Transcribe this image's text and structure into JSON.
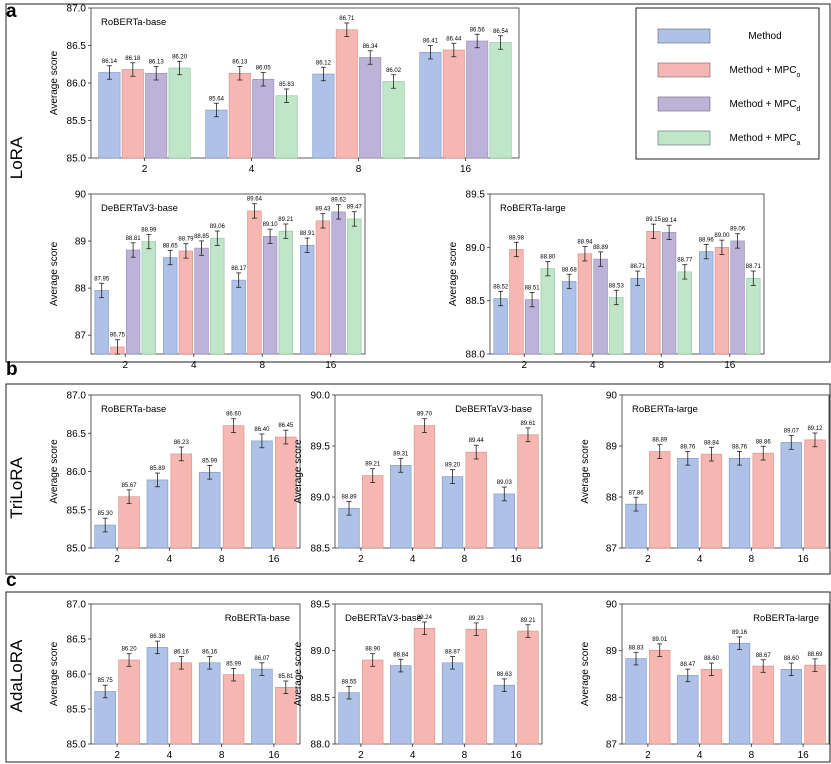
{
  "page": {
    "panel_labels": [
      "a",
      "b",
      "c"
    ],
    "side_labels": [
      "LoRA",
      "TriLoRA",
      "AdaLoRA"
    ]
  },
  "legend": {
    "items": [
      {
        "label": "Method",
        "sub": "",
        "color": "#aec2e8"
      },
      {
        "label": "Method + MPC",
        "sub": "o",
        "color": "#f6b6b1"
      },
      {
        "label": "Method + MPC",
        "sub": "d",
        "color": "#bdb3d8"
      },
      {
        "label": "Method + MPC",
        "sub": "a",
        "color": "#bfe6c9"
      }
    ]
  },
  "chart_data": [
    {
      "id": "lora-roberta-base",
      "type": "bar",
      "title": "RoBERTa-base",
      "title_position": "top-left",
      "ylabel": "Average score",
      "categories": [
        "2",
        "4",
        "8",
        "16"
      ],
      "ylim": [
        85.0,
        87.0
      ],
      "yticks": [
        85.0,
        85.5,
        86.0,
        86.5,
        87.0
      ],
      "tick_decimals": 1,
      "grid": false,
      "series": [
        {
          "values": [
            86.14,
            85.64,
            86.12,
            86.41
          ]
        },
        {
          "values": [
            86.18,
            86.13,
            86.71,
            86.44
          ]
        },
        {
          "values": [
            86.13,
            86.05,
            86.34,
            86.56
          ]
        },
        {
          "values": [
            86.2,
            85.83,
            86.02,
            86.54
          ]
        }
      ],
      "labels": [
        [
          "86.14",
          "85.64",
          "86.12",
          "86.41"
        ],
        [
          "86.18",
          "86.13",
          "86.71",
          "86.44"
        ],
        [
          "86.13",
          "86.05",
          "86.34",
          "86.56"
        ],
        [
          "86.20",
          "85.83",
          "86.02",
          "86.54"
        ]
      ]
    },
    {
      "id": "lora-debertav3-base",
      "type": "bar",
      "title": "DeBERTaV3-base",
      "title_position": "top-left",
      "ylabel": "Average score",
      "categories": [
        "2",
        "4",
        "8",
        "16"
      ],
      "ylim": [
        86.6,
        90.0
      ],
      "yticks": [
        87,
        88,
        89,
        90
      ],
      "tick_decimals": 0,
      "grid": false,
      "series": [
        {
          "values": [
            87.95,
            88.65,
            88.17,
            88.91
          ]
        },
        {
          "values": [
            86.75,
            88.79,
            89.64,
            89.43
          ]
        },
        {
          "values": [
            88.81,
            88.85,
            89.1,
            89.62
          ]
        },
        {
          "values": [
            88.99,
            89.06,
            89.21,
            89.47
          ]
        }
      ],
      "labels": [
        [
          "87.95",
          "88.65",
          "88.17",
          "88.91"
        ],
        [
          "86.75",
          "88.79",
          "89.64",
          "89.43"
        ],
        [
          "88.81",
          "88.85",
          "89.10",
          "89.62"
        ],
        [
          "88.99",
          "89.06",
          "89.21",
          "89.47"
        ]
      ]
    },
    {
      "id": "lora-roberta-large",
      "type": "bar",
      "title": "RoBERTa-large",
      "title_position": "top-left",
      "ylabel": "Average score",
      "categories": [
        "2",
        "4",
        "8",
        "16"
      ],
      "ylim": [
        88.0,
        89.5
      ],
      "yticks": [
        88.0,
        88.5,
        89.0,
        89.5
      ],
      "tick_decimals": 1,
      "grid": false,
      "series": [
        {
          "values": [
            88.52,
            88.68,
            88.71,
            88.96
          ]
        },
        {
          "values": [
            88.98,
            88.94,
            89.15,
            89.0
          ]
        },
        {
          "values": [
            88.51,
            88.89,
            89.14,
            89.06
          ]
        },
        {
          "values": [
            88.8,
            88.53,
            88.77,
            88.71
          ]
        }
      ],
      "labels": [
        [
          "88.52",
          "88.68",
          "88.71",
          "88.96"
        ],
        [
          "88.98",
          "88.94",
          "89.15",
          "89.00"
        ],
        [
          "88.51",
          "88.89",
          "89.14",
          "89.06"
        ],
        [
          "88.80",
          "88.53",
          "88.77",
          "88.71"
        ]
      ]
    },
    {
      "id": "trilora-roberta-base",
      "type": "bar",
      "title": "RoBERTa-base",
      "title_position": "top-left",
      "ylabel": "Average score",
      "categories": [
        "2",
        "4",
        "8",
        "16"
      ],
      "ylim": [
        85.0,
        87.0
      ],
      "yticks": [
        85.0,
        85.5,
        86.0,
        86.5,
        87.0
      ],
      "tick_decimals": 1,
      "grid": false,
      "series": [
        {
          "values": [
            85.3,
            85.89,
            85.99,
            86.4
          ]
        },
        {
          "values": [
            85.67,
            86.23,
            86.6,
            86.45
          ]
        }
      ],
      "labels": [
        [
          "85.30",
          "85.89",
          "85.99",
          "86.40"
        ],
        [
          "85.67",
          "86.23",
          "86.60",
          "86.45"
        ]
      ]
    },
    {
      "id": "trilora-debertav3-base",
      "type": "bar",
      "title": "DeBERTaV3-base",
      "title_position": "top-right",
      "ylabel": "Average score",
      "categories": [
        "2",
        "4",
        "8",
        "16"
      ],
      "ylim": [
        88.5,
        90.0
      ],
      "yticks": [
        88.5,
        89.0,
        89.5,
        90.0
      ],
      "tick_decimals": 1,
      "grid": false,
      "series": [
        {
          "values": [
            88.89,
            89.31,
            89.2,
            89.03
          ]
        },
        {
          "values": [
            89.21,
            89.7,
            89.44,
            89.61
          ]
        }
      ],
      "labels": [
        [
          "88.89",
          "89.31",
          "89.20",
          "89.03"
        ],
        [
          "89.21",
          "89.70",
          "89.44",
          "89.61"
        ]
      ]
    },
    {
      "id": "trilora-roberta-large",
      "type": "bar",
      "title": "RoBERTa-large",
      "title_position": "top-left",
      "ylabel": "Average score",
      "categories": [
        "2",
        "4",
        "8",
        "16"
      ],
      "ylim": [
        87,
        90
      ],
      "yticks": [
        87,
        88,
        89,
        90
      ],
      "tick_decimals": 0,
      "grid": false,
      "series": [
        {
          "values": [
            87.86,
            88.76,
            88.76,
            89.07
          ]
        },
        {
          "values": [
            88.89,
            88.84,
            88.86,
            89.12
          ]
        }
      ],
      "labels": [
        [
          "87.86",
          "88.76",
          "88.76",
          "89.07"
        ],
        [
          "88.89",
          "88.84",
          "88.86",
          "89.12"
        ]
      ]
    },
    {
      "id": "adalora-roberta-base",
      "type": "bar",
      "title": "RoBERTa-base",
      "title_position": "top-right",
      "ylabel": "Average score",
      "categories": [
        "2",
        "4",
        "8",
        "16"
      ],
      "ylim": [
        85.0,
        87.0
      ],
      "yticks": [
        85.0,
        85.5,
        86.0,
        86.5,
        87.0
      ],
      "tick_decimals": 1,
      "grid": false,
      "series": [
        {
          "values": [
            85.75,
            86.38,
            86.16,
            86.07
          ]
        },
        {
          "values": [
            86.2,
            86.16,
            85.99,
            85.81
          ]
        }
      ],
      "labels": [
        [
          "85.75",
          "86.38",
          "86.16",
          "86.07"
        ],
        [
          "86.20",
          "86.16",
          "85.99",
          "85.81"
        ]
      ]
    },
    {
      "id": "adalora-debertav3-base",
      "type": "bar",
      "title": "DeBERTaV3-base",
      "title_position": "top-left",
      "ylabel": "Average score",
      "categories": [
        "2",
        "4",
        "8",
        "16"
      ],
      "ylim": [
        88.0,
        89.5
      ],
      "yticks": [
        88.0,
        88.5,
        89.0,
        89.5
      ],
      "tick_decimals": 1,
      "grid": false,
      "series": [
        {
          "values": [
            88.55,
            88.84,
            88.87,
            88.63
          ]
        },
        {
          "values": [
            88.9,
            89.24,
            89.23,
            89.21
          ]
        }
      ],
      "labels": [
        [
          "88.55",
          "88.84",
          "88.87",
          "88.63"
        ],
        [
          "88.90",
          "89.24",
          "89.23",
          "89.21"
        ]
      ]
    },
    {
      "id": "adalora-roberta-large",
      "type": "bar",
      "title": "RoBERTa-large",
      "title_position": "top-right",
      "ylabel": "Average score",
      "categories": [
        "2",
        "4",
        "8",
        "16"
      ],
      "ylim": [
        87,
        90
      ],
      "yticks": [
        87,
        88,
        89,
        90
      ],
      "tick_decimals": 0,
      "grid": false,
      "series": [
        {
          "values": [
            88.83,
            88.47,
            89.16,
            88.6
          ]
        },
        {
          "values": [
            89.01,
            88.6,
            88.67,
            88.69
          ]
        }
      ],
      "labels": [
        [
          "88.83",
          "88.47",
          "89.16",
          "88.60"
        ],
        [
          "89.01",
          "88.60",
          "88.67",
          "88.69"
        ]
      ]
    }
  ]
}
